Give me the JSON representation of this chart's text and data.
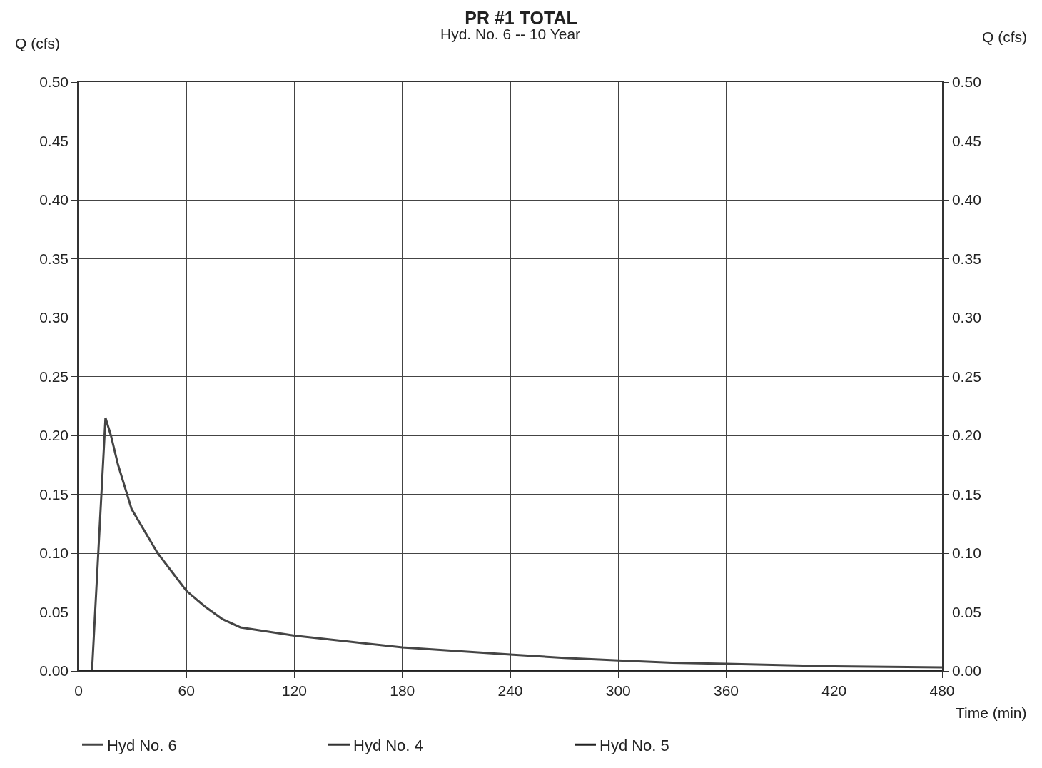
{
  "chart_data": {
    "type": "line",
    "title": "PR #1 TOTAL",
    "subtitle": "Hyd. No. 6 -- 10 Year",
    "xlabel": "Time (min)",
    "ylabel": "Q (cfs)",
    "y2label": "Q (cfs)",
    "xlim": [
      0,
      480
    ],
    "xticks": [
      0,
      60,
      120,
      180,
      240,
      300,
      360,
      420,
      480
    ],
    "ylim": [
      0,
      0.5
    ],
    "yticks": [
      {
        "value": 0,
        "label": "0.00"
      },
      0.05,
      {
        "value": 0.1,
        "label": "0.10"
      },
      0.15,
      {
        "value": 0.2,
        "label": "0.20"
      },
      0.25,
      {
        "value": 0.3,
        "label": "0.30"
      },
      0.35,
      {
        "value": 0.4,
        "label": "0.40"
      },
      0.45,
      {
        "value": 0.5,
        "label": "0.50"
      }
    ],
    "y2lim": [
      0,
      0.5
    ],
    "y2ticks": [
      {
        "value": 0,
        "label": "0.00"
      },
      0.05,
      {
        "value": 0.1,
        "label": "0.10"
      },
      0.15,
      {
        "value": 0.2,
        "label": "0.20"
      },
      0.25,
      {
        "value": 0.3,
        "label": "0.30"
      },
      0.35,
      {
        "value": 0.4,
        "label": "0.40"
      },
      0.45,
      {
        "value": 0.5,
        "label": "0.50"
      }
    ],
    "grid": true,
    "legend": "bottom",
    "marker": "none",
    "line_style": "solid",
    "series": [
      {
        "name": "Hyd No. 6",
        "color": "#454545",
        "x": [
          0,
          7.5,
          15,
          18,
          22,
          29.5,
          37,
          44,
          54,
          60,
          70,
          80,
          90,
          120,
          150,
          180,
          210,
          240,
          270,
          300,
          330,
          360,
          390,
          420,
          450,
          480
        ],
        "values": [
          0,
          0,
          0.215,
          0.2,
          0.175,
          0.1375,
          0.118,
          0.1,
          0.08,
          0.068,
          0.055,
          0.044,
          0.037,
          0.03,
          0.025,
          0.02,
          0.017,
          0.014,
          0.011,
          0.009,
          0.007,
          0.006,
          0.005,
          0.004,
          0.0035,
          0.003
        ]
      },
      {
        "name": "Hyd No. 4",
        "color": "#333333",
        "x": [
          0,
          480
        ],
        "values": [
          0,
          0
        ]
      },
      {
        "name": "Hyd No. 5",
        "color": "#222222",
        "x": [
          0,
          480
        ],
        "values": [
          0,
          0
        ]
      }
    ]
  }
}
